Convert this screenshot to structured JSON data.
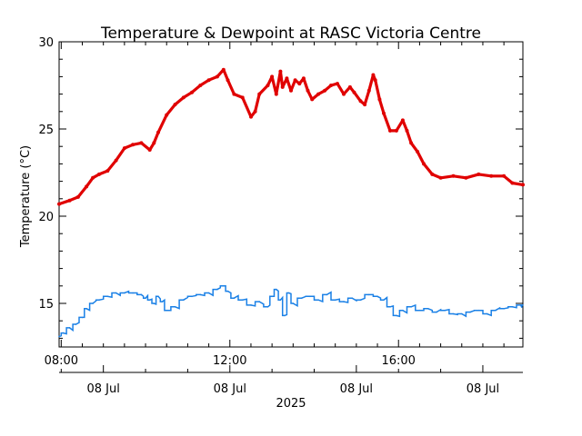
{
  "chart_data": {
    "type": "line",
    "title": "Temperature & Dewpoint at RASC Victoria Centre",
    "ylabel": "Temperature (°C)",
    "xlabel": "2025",
    "ylim": [
      12.5,
      30
    ],
    "yticks": [
      15,
      20,
      25,
      30
    ],
    "xlim_hours": [
      7.95,
      18.95
    ],
    "time_ticks": [
      {
        "hour": 8,
        "label": "08:00"
      },
      {
        "hour": 12,
        "label": "12:00"
      },
      {
        "hour": 16,
        "label": "16:00"
      }
    ],
    "date_ticks": [
      {
        "hour": 9,
        "label": "08 Jul"
      },
      {
        "hour": 12,
        "label": "08 Jul"
      },
      {
        "hour": 15,
        "label": "08 Jul"
      },
      {
        "hour": 18,
        "label": "08 Jul"
      }
    ],
    "grid": false,
    "series": [
      {
        "color": "#e00000",
        "marker": "dots",
        "x": [
          7.95,
          8.2,
          8.4,
          8.6,
          8.75,
          8.9,
          9.1,
          9.3,
          9.5,
          9.7,
          9.9,
          10.1,
          10.2,
          10.3,
          10.5,
          10.7,
          10.9,
          11.1,
          11.3,
          11.5,
          11.7,
          11.85,
          11.95,
          12.1,
          12.3,
          12.5,
          12.6,
          12.7,
          12.9,
          13.0,
          13.1,
          13.2,
          13.25,
          13.35,
          13.45,
          13.55,
          13.65,
          13.75,
          13.85,
          13.95,
          14.1,
          14.25,
          14.4,
          14.55,
          14.7,
          14.85,
          14.95,
          15.1,
          15.2,
          15.3,
          15.4,
          15.45,
          15.55,
          15.65,
          15.8,
          15.95,
          16.1,
          16.2,
          16.3,
          16.45,
          16.6,
          16.8,
          17.0,
          17.3,
          17.6,
          17.9,
          18.2,
          18.5,
          18.7,
          18.95
        ],
        "values": [
          20.7,
          20.9,
          21.1,
          21.7,
          22.2,
          22.4,
          22.6,
          23.2,
          23.9,
          24.1,
          24.2,
          23.8,
          24.2,
          24.8,
          25.8,
          26.4,
          26.8,
          27.1,
          27.5,
          27.8,
          28.0,
          28.4,
          27.8,
          27.0,
          26.8,
          25.7,
          26.0,
          27.0,
          27.5,
          28.0,
          27.0,
          28.3,
          27.4,
          27.9,
          27.2,
          27.8,
          27.6,
          27.9,
          27.2,
          26.7,
          27.0,
          27.2,
          27.5,
          27.6,
          27.0,
          27.4,
          27.1,
          26.6,
          26.4,
          27.2,
          28.1,
          27.8,
          26.7,
          25.9,
          24.9,
          24.9,
          25.5,
          24.9,
          24.2,
          23.7,
          23.0,
          22.4,
          22.2,
          22.3,
          22.2,
          22.4,
          22.3,
          22.3,
          21.9,
          21.8
        ]
      },
      {
        "color": "#1a80e6",
        "marker": "line",
        "x": [
          7.95,
          8.05,
          8.2,
          8.35,
          8.5,
          8.6,
          8.75,
          8.9,
          9.1,
          9.3,
          9.5,
          9.7,
          9.9,
          10.0,
          10.1,
          10.2,
          10.3,
          10.4,
          10.5,
          10.7,
          10.9,
          11.1,
          11.3,
          11.5,
          11.7,
          11.85,
          11.95,
          12.1,
          12.3,
          12.5,
          12.7,
          12.9,
          13.0,
          13.1,
          13.2,
          13.3,
          13.4,
          13.5,
          13.7,
          13.9,
          14.1,
          14.3,
          14.5,
          14.7,
          14.9,
          15.1,
          15.3,
          15.5,
          15.65,
          15.8,
          15.95,
          16.1,
          16.3,
          16.5,
          16.7,
          16.9,
          17.1,
          17.3,
          17.5,
          17.7,
          17.9,
          18.1,
          18.3,
          18.5,
          18.7,
          18.9,
          18.95
        ],
        "values": [
          13.1,
          13.3,
          13.6,
          13.8,
          14.2,
          14.7,
          15.0,
          15.2,
          15.4,
          15.6,
          15.6,
          15.6,
          15.5,
          15.3,
          15.2,
          15.0,
          15.4,
          15.1,
          14.6,
          14.8,
          15.2,
          15.4,
          15.5,
          15.6,
          15.8,
          16.0,
          15.7,
          15.3,
          15.2,
          14.9,
          15.1,
          14.8,
          15.4,
          15.8,
          15.2,
          14.3,
          15.6,
          15.0,
          15.3,
          15.4,
          15.2,
          15.5,
          15.2,
          15.1,
          15.3,
          15.2,
          15.5,
          15.4,
          15.2,
          14.8,
          14.3,
          14.6,
          14.8,
          14.6,
          14.7,
          14.5,
          14.6,
          14.4,
          14.4,
          14.5,
          14.6,
          14.4,
          14.6,
          14.7,
          14.8,
          14.9,
          14.9
        ]
      }
    ]
  }
}
